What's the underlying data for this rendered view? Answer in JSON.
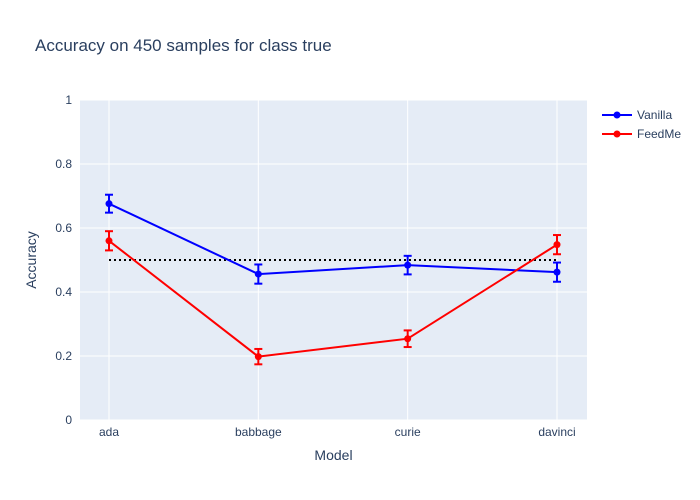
{
  "chart_data": {
    "type": "line",
    "title": "Accuracy on 450 samples for class  true",
    "xlabel": "Model",
    "ylabel": "Accuracy",
    "categories": [
      "ada",
      "babbage",
      "curie",
      "davinci"
    ],
    "ylim": [
      0,
      1
    ],
    "yticks": [
      "0",
      "0.2",
      "0.4",
      "0.6",
      "0.8",
      "1"
    ],
    "ytick_values": [
      0,
      0.2,
      0.4,
      0.6,
      0.8,
      1
    ],
    "grid": true,
    "legend_position": "top-right",
    "reference_line": {
      "y": 0.5,
      "style": "dotted",
      "color": "#000000"
    },
    "series": [
      {
        "name": "Vanilla",
        "color": "#0000ff",
        "values": [
          0.676,
          0.456,
          0.484,
          0.462
        ],
        "errors": [
          0.028,
          0.03,
          0.029,
          0.03
        ]
      },
      {
        "name": "FeedMe",
        "color": "#ff0000",
        "values": [
          0.56,
          0.198,
          0.254,
          0.548
        ],
        "errors": [
          0.03,
          0.024,
          0.026,
          0.03
        ]
      }
    ]
  }
}
